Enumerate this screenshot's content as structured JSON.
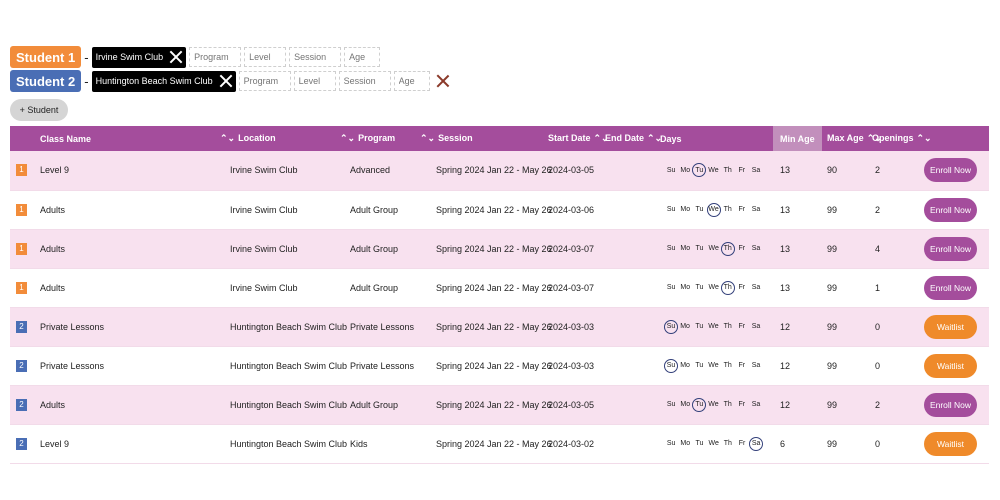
{
  "students": [
    {
      "label": "Student 1",
      "club": "Irvine Swim Club",
      "filters": {
        "program": "Program",
        "level": "Level",
        "session": "Session",
        "age": "Age"
      }
    },
    {
      "label": "Student 2",
      "club": "Huntington Beach Swim Club",
      "filters": {
        "program": "Program",
        "level": "Level",
        "session": "Session",
        "age": "Age"
      }
    }
  ],
  "add_student_label": "+ Student",
  "dash": "-",
  "table": {
    "headers": {
      "class_name": "Class Name",
      "location": "Location",
      "program": "Program",
      "session": "Session",
      "start_date": "Start Date",
      "end_date": "End Date",
      "days": "Days",
      "min_age": "Min Age",
      "max_age": "Max Age",
      "openings": "Openings"
    },
    "day_labels": [
      "Su",
      "Mo",
      "Tu",
      "We",
      "Th",
      "Fr",
      "Sa"
    ],
    "rows": [
      {
        "student": "1",
        "class_name": "Level 9",
        "location": "Irvine Swim Club",
        "program": "Advanced",
        "session": "Spring 2024 Jan 22 - May 26",
        "start_date": "2024-03-05",
        "end_date": "",
        "active_day": "Tu",
        "min_age": "13",
        "max_age": "90",
        "openings": "2",
        "action": "Enroll Now"
      },
      {
        "student": "1",
        "class_name": "Adults",
        "location": "Irvine Swim Club",
        "program": "Adult Group",
        "session": "Spring 2024 Jan 22 - May 26",
        "start_date": "2024-03-06",
        "end_date": "",
        "active_day": "We",
        "min_age": "13",
        "max_age": "99",
        "openings": "2",
        "action": "Enroll Now"
      },
      {
        "student": "1",
        "class_name": "Adults",
        "location": "Irvine Swim Club",
        "program": "Adult Group",
        "session": "Spring 2024 Jan 22 - May 26",
        "start_date": "2024-03-07",
        "end_date": "",
        "active_day": "Th",
        "min_age": "13",
        "max_age": "99",
        "openings": "4",
        "action": "Enroll Now"
      },
      {
        "student": "1",
        "class_name": "Adults",
        "location": "Irvine Swim Club",
        "program": "Adult Group",
        "session": "Spring 2024 Jan 22 - May 26",
        "start_date": "2024-03-07",
        "end_date": "",
        "active_day": "Th",
        "min_age": "13",
        "max_age": "99",
        "openings": "1",
        "action": "Enroll Now"
      },
      {
        "student": "2",
        "class_name": "Private Lessons",
        "location": "Huntington Beach Swim Club",
        "program": "Private Lessons",
        "session": "Spring 2024 Jan 22 - May 26",
        "start_date": "2024-03-03",
        "end_date": "",
        "active_day": "Su",
        "min_age": "12",
        "max_age": "99",
        "openings": "0",
        "action": "Waitlist"
      },
      {
        "student": "2",
        "class_name": "Private Lessons",
        "location": "Huntington Beach Swim Club",
        "program": "Private Lessons",
        "session": "Spring 2024 Jan 22 - May 26",
        "start_date": "2024-03-03",
        "end_date": "",
        "active_day": "Su",
        "min_age": "12",
        "max_age": "99",
        "openings": "0",
        "action": "Waitlist"
      },
      {
        "student": "2",
        "class_name": "Adults",
        "location": "Huntington Beach Swim Club",
        "program": "Adult Group",
        "session": "Spring 2024 Jan 22 - May 26",
        "start_date": "2024-03-05",
        "end_date": "",
        "active_day": "Tu",
        "min_age": "12",
        "max_age": "99",
        "openings": "2",
        "action": "Enroll Now"
      },
      {
        "student": "2",
        "class_name": "Level 9",
        "location": "Huntington Beach Swim Club",
        "program": "Kids",
        "session": "Spring 2024 Jan 22 - May 26",
        "start_date": "2024-03-02",
        "end_date": "",
        "active_day": "Sa",
        "min_age": "6",
        "max_age": "99",
        "openings": "0",
        "action": "Waitlist"
      }
    ]
  },
  "colors": {
    "student1": "#f28c3a",
    "student2": "#4a6eb5",
    "header": "#a44d9c",
    "row_alt": "#f8e1ef",
    "enroll": "#a44d9c",
    "waitlist": "#ef8a2a"
  },
  "icons": {
    "remove": "close-icon",
    "sort": "sort-arrows-icon",
    "clear": "close-icon"
  }
}
